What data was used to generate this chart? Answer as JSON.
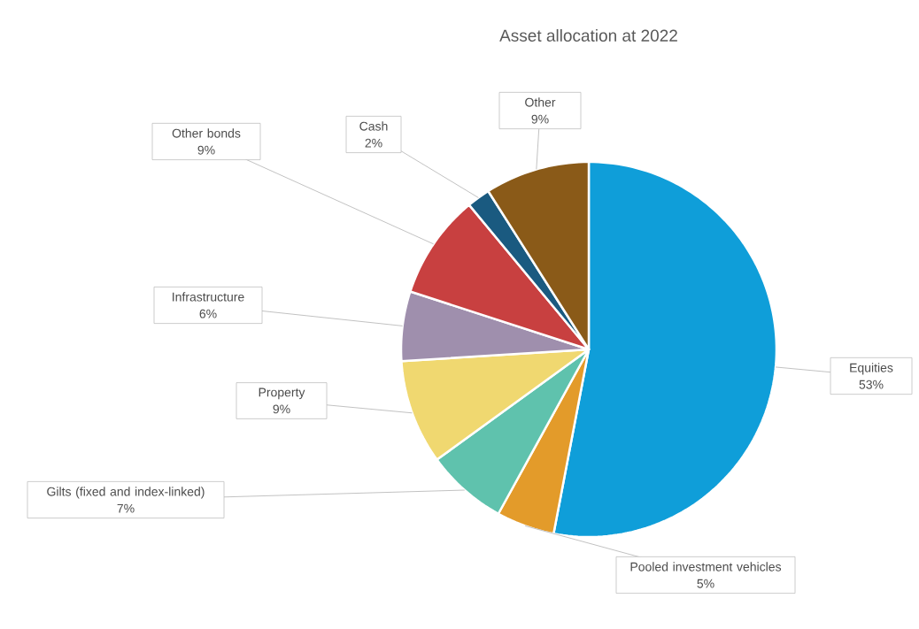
{
  "chart_data": {
    "type": "pie",
    "title": "Asset allocation at 2022",
    "categories": [
      "Equities",
      "Pooled investment vehicles",
      "Gilts (fixed and index-linked)",
      "Property",
      "Infrastructure",
      "Other bonds",
      "Cash",
      "Other"
    ],
    "values": [
      53,
      5,
      7,
      9,
      6,
      9,
      2,
      9
    ],
    "value_labels": [
      "53%",
      "5%",
      "7%",
      "9%",
      "6%",
      "9%",
      "2%",
      "9%"
    ],
    "colors": [
      "#0f9ed9",
      "#e39b2a",
      "#5fc2ad",
      "#f0d870",
      "#9f8fad",
      "#c84040",
      "#1a5a80",
      "#8a5a18"
    ]
  }
}
